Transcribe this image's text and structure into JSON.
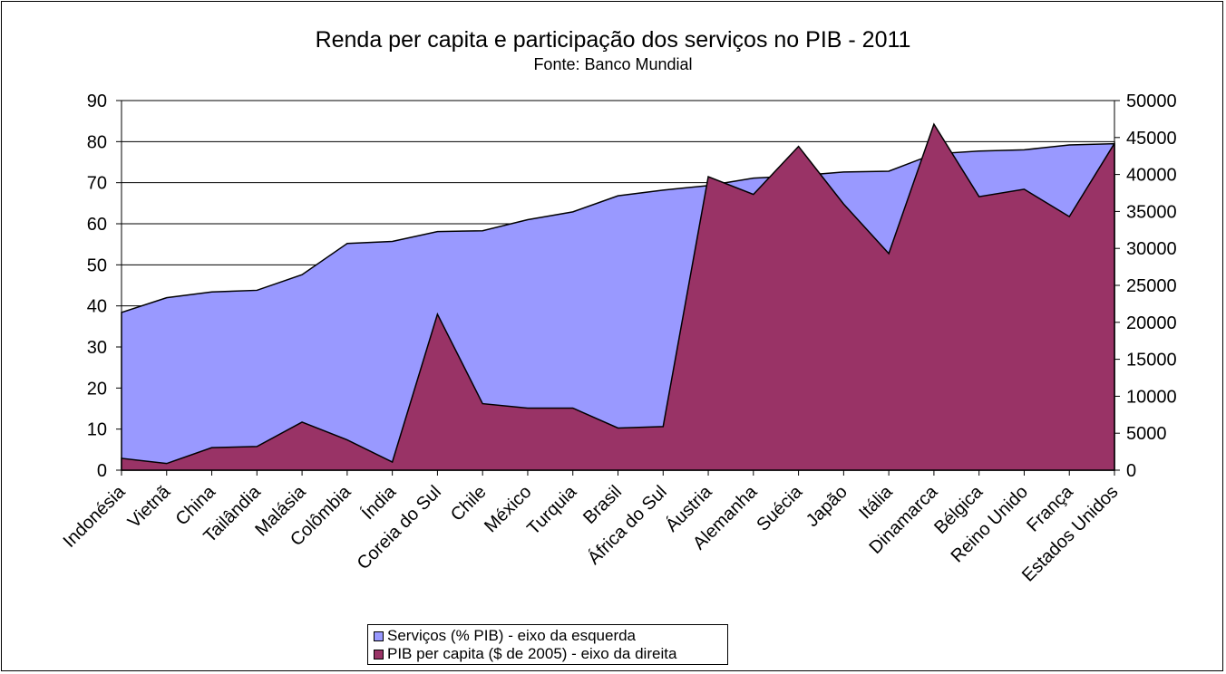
{
  "chart_data": {
    "type": "area",
    "title": "Renda per capita e participação dos serviços no PIB - 2011",
    "subtitle": "Fonte: Banco Mundial",
    "categories": [
      "Indonésia",
      "Vietnã",
      "China",
      "Tailândia",
      "Malásia",
      "Colômbia",
      "Índia",
      "Coreia do Sul",
      "Chile",
      "México",
      "Turquia",
      "Brasil",
      "África do Sul",
      "Áustria",
      "Alemanha",
      "Suécia",
      "Japão",
      "Itália",
      "Dinamarca",
      "Bélgica",
      "Reino Unido",
      "França",
      "Estados Unidos"
    ],
    "series": [
      {
        "name": "Serviços (% PIB) - eixo da esquerda",
        "axis": "left",
        "color": "#9999ff",
        "values": [
          38.4,
          42.0,
          43.4,
          43.8,
          47.6,
          55.2,
          55.7,
          58.1,
          58.3,
          61.0,
          62.9,
          66.8,
          68.2,
          69.3,
          71.1,
          71.7,
          72.6,
          72.8,
          77.0,
          77.7,
          78.0,
          79.2,
          79.5
        ]
      },
      {
        "name": "PIB per capita ($ de 2005) - eixo da direita",
        "axis": "right",
        "color": "#993366",
        "values": [
          1600,
          900,
          3050,
          3200,
          6500,
          4100,
          1100,
          21100,
          9000,
          8400,
          8400,
          5700,
          5900,
          39700,
          37300,
          43800,
          36000,
          29300,
          46800,
          37000,
          38000,
          34300,
          44200
        ]
      }
    ],
    "left_axis": {
      "min": 0,
      "max": 90,
      "ticks": [
        "0",
        "10",
        "20",
        "30",
        "40",
        "50",
        "60",
        "70",
        "80",
        "90"
      ]
    },
    "right_axis": {
      "min": 0,
      "max": 50000,
      "ticks": [
        "0",
        "5000",
        "10000",
        "15000",
        "20000",
        "25000",
        "30000",
        "35000",
        "40000",
        "45000",
        "50000"
      ]
    },
    "grid": "horizontal",
    "legend_position": "bottom"
  }
}
